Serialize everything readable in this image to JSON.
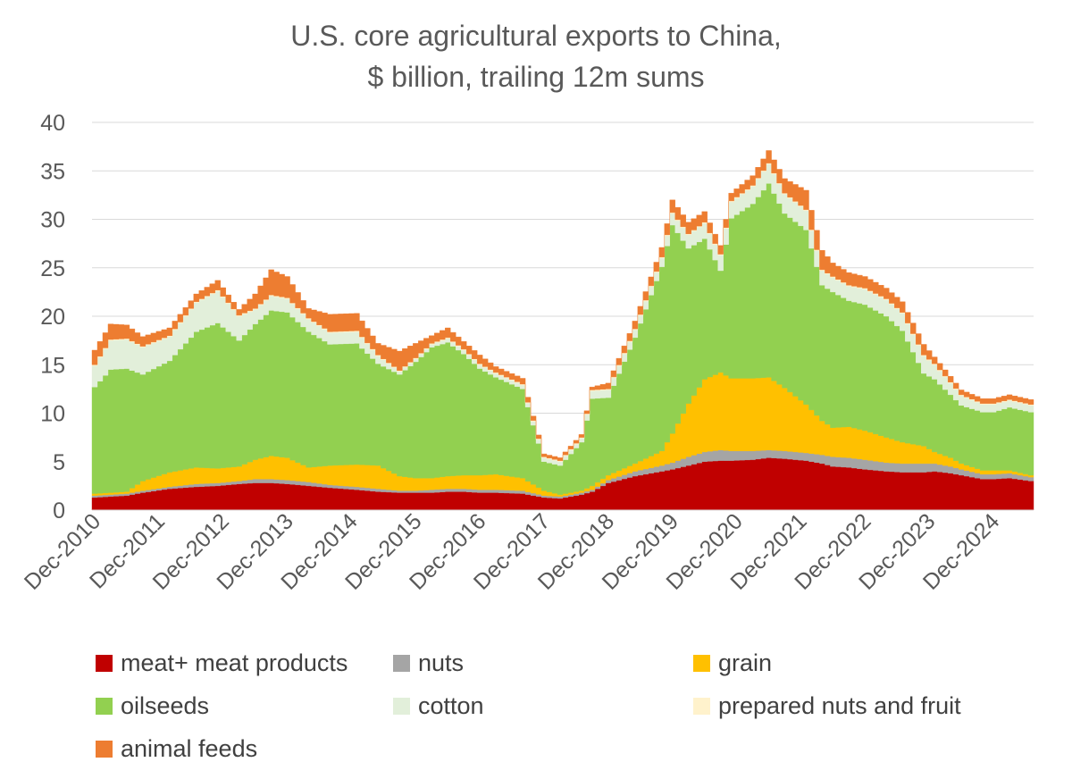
{
  "chart_data": {
    "type": "area",
    "stacked": true,
    "title": [
      "U.S. core agricultural exports to China,",
      "$ billion, trailing 12m sums"
    ],
    "xlabel": "",
    "ylabel": "",
    "ylim": [
      0,
      40
    ],
    "yticks": [
      0,
      5,
      10,
      15,
      20,
      25,
      30,
      35,
      40
    ],
    "grid": "horizontal",
    "legend_position": "bottom",
    "x_tick_labels": [
      "Dec-2010",
      "Dec-2011",
      "Dec-2012",
      "Dec-2013",
      "Dec-2014",
      "Dec-2015",
      "Dec-2016",
      "Dec-2017",
      "Dec-2018",
      "Dec-2019",
      "Dec-2020",
      "Dec-2021",
      "Dec-2022",
      "Dec-2023",
      "Dec-2024"
    ],
    "x_start": "Dec-2010",
    "frequency": "monthly",
    "key_points_index": [
      0,
      3,
      6,
      9,
      14,
      19,
      23,
      27,
      30,
      33,
      36,
      40,
      44,
      49,
      53,
      57,
      60,
      63,
      66,
      69,
      72,
      75,
      80,
      84,
      87,
      91,
      93,
      96,
      101,
      106,
      108,
      111,
      114,
      117,
      119,
      123,
      126,
      129,
      133,
      136,
      138,
      141,
      144,
      148,
      151,
      155,
      157,
      160,
      162,
      166,
      168,
      171,
      175
    ],
    "series": [
      {
        "name": "meat+ meat products",
        "color": "#C00000",
        "key_values": [
          1.3,
          1.4,
          1.5,
          1.8,
          2.2,
          2.4,
          2.5,
          2.7,
          2.8,
          2.8,
          2.7,
          2.5,
          2.3,
          2.1,
          1.9,
          1.8,
          1.8,
          1.8,
          1.9,
          1.9,
          1.8,
          1.8,
          1.7,
          1.3,
          1.2,
          1.6,
          1.9,
          2.8,
          3.5,
          4.0,
          4.2,
          4.6,
          5.0,
          5.1,
          5.1,
          5.2,
          5.4,
          5.3,
          5.1,
          4.8,
          4.5,
          4.4,
          4.2,
          4.0,
          3.9,
          3.9,
          4.0,
          3.8,
          3.6,
          3.2,
          3.2,
          3.3,
          3.0
        ]
      },
      {
        "name": "nuts",
        "color": "#A5A5A5",
        "key_values": [
          0.2,
          0.2,
          0.2,
          0.2,
          0.2,
          0.3,
          0.3,
          0.3,
          0.4,
          0.4,
          0.4,
          0.4,
          0.3,
          0.3,
          0.3,
          0.2,
          0.2,
          0.3,
          0.3,
          0.3,
          0.3,
          0.3,
          0.3,
          0.2,
          0.2,
          0.2,
          0.2,
          0.3,
          0.5,
          0.6,
          0.7,
          0.9,
          1.0,
          1.1,
          1.0,
          0.9,
          0.8,
          0.8,
          0.8,
          0.9,
          1.0,
          1.0,
          1.0,
          0.9,
          0.9,
          0.9,
          0.8,
          0.7,
          0.6,
          0.5,
          0.5,
          0.5,
          0.4
        ]
      },
      {
        "name": "grain",
        "color": "#FFC000",
        "key_values": [
          0.2,
          0.2,
          0.2,
          1.0,
          1.5,
          1.7,
          1.5,
          1.5,
          2.0,
          2.4,
          2.3,
          1.5,
          2.0,
          2.3,
          2.4,
          1.5,
          1.3,
          1.2,
          1.3,
          1.4,
          1.5,
          1.6,
          1.3,
          0.5,
          0.2,
          0.2,
          0.4,
          0.5,
          0.8,
          1.5,
          3.0,
          5.5,
          7.5,
          8.0,
          7.5,
          7.5,
          7.5,
          6.5,
          5.0,
          3.5,
          3.0,
          3.2,
          3.0,
          2.6,
          2.2,
          1.8,
          1.2,
          0.9,
          0.6,
          0.4,
          0.4,
          0.3,
          0.2
        ]
      },
      {
        "name": "oilseeds",
        "color": "#92D050",
        "key_values": [
          11.0,
          12.7,
          12.7,
          11.0,
          11.5,
          14.0,
          15.0,
          13.0,
          14.0,
          15.0,
          15.0,
          14.0,
          12.5,
          12.5,
          10.5,
          10.5,
          12.0,
          13.5,
          13.8,
          12.5,
          11.0,
          10.0,
          9.2,
          3.0,
          3.0,
          5.0,
          9.0,
          8.0,
          13.0,
          19.0,
          21.5,
          16.0,
          14.5,
          10.5,
          16.5,
          18.0,
          20.0,
          18.0,
          18.0,
          14.0,
          14.0,
          13.0,
          13.0,
          12.5,
          11.5,
          7.5,
          7.5,
          6.5,
          6.0,
          6.0,
          6.0,
          6.5,
          6.5
        ]
      },
      {
        "name": "cotton",
        "color": "#E2EFDA",
        "key_values": [
          2.2,
          3.0,
          3.0,
          2.8,
          2.5,
          3.0,
          3.3,
          2.5,
          1.5,
          1.5,
          1.4,
          1.3,
          1.2,
          1.2,
          0.8,
          0.3,
          0.3,
          0.3,
          0.4,
          0.4,
          0.4,
          0.4,
          0.4,
          0.4,
          0.4,
          0.4,
          0.8,
          0.8,
          0.8,
          0.9,
          1.2,
          1.4,
          1.6,
          1.6,
          1.7,
          1.8,
          2.0,
          2.0,
          2.0,
          1.5,
          1.5,
          1.5,
          1.6,
          1.7,
          1.8,
          1.8,
          1.5,
          1.2,
          1.0,
          0.8,
          0.8,
          0.7,
          0.7
        ]
      },
      {
        "name": "prepared nuts and fruit",
        "color": "#FFF2CC",
        "key_values": [
          0.1,
          0.1,
          0.1,
          0.1,
          0.1,
          0.1,
          0.1,
          0.1,
          0.1,
          0.1,
          0.1,
          0.1,
          0.1,
          0.1,
          0.1,
          0.1,
          0.1,
          0.1,
          0.1,
          0.1,
          0.1,
          0.1,
          0.1,
          0.1,
          0.1,
          0.1,
          0.1,
          0.1,
          0.1,
          0.1,
          0.1,
          0.1,
          0.1,
          0.1,
          0.1,
          0.1,
          0.1,
          0.1,
          0.1,
          0.1,
          0.1,
          0.1,
          0.1,
          0.1,
          0.1,
          0.1,
          0.1,
          0.1,
          0.1,
          0.1,
          0.1,
          0.1,
          0.1
        ]
      },
      {
        "name": "animal feeds",
        "color": "#ED7D31",
        "key_values": [
          1.5,
          1.6,
          1.4,
          1.0,
          0.8,
          0.8,
          1.0,
          0.6,
          1.5,
          2.6,
          2.2,
          1.0,
          1.8,
          1.8,
          1.2,
          2.0,
          1.5,
          0.8,
          1.0,
          0.8,
          0.9,
          0.6,
          0.6,
          0.3,
          0.3,
          0.3,
          0.3,
          0.6,
          0.8,
          1.0,
          1.3,
          1.2,
          1.1,
          0.9,
          0.8,
          1.0,
          1.3,
          1.5,
          2.0,
          2.0,
          1.4,
          1.3,
          1.2,
          1.1,
          1.1,
          1.1,
          0.7,
          0.6,
          0.5,
          0.5,
          0.5,
          0.5,
          0.5
        ]
      }
    ]
  }
}
